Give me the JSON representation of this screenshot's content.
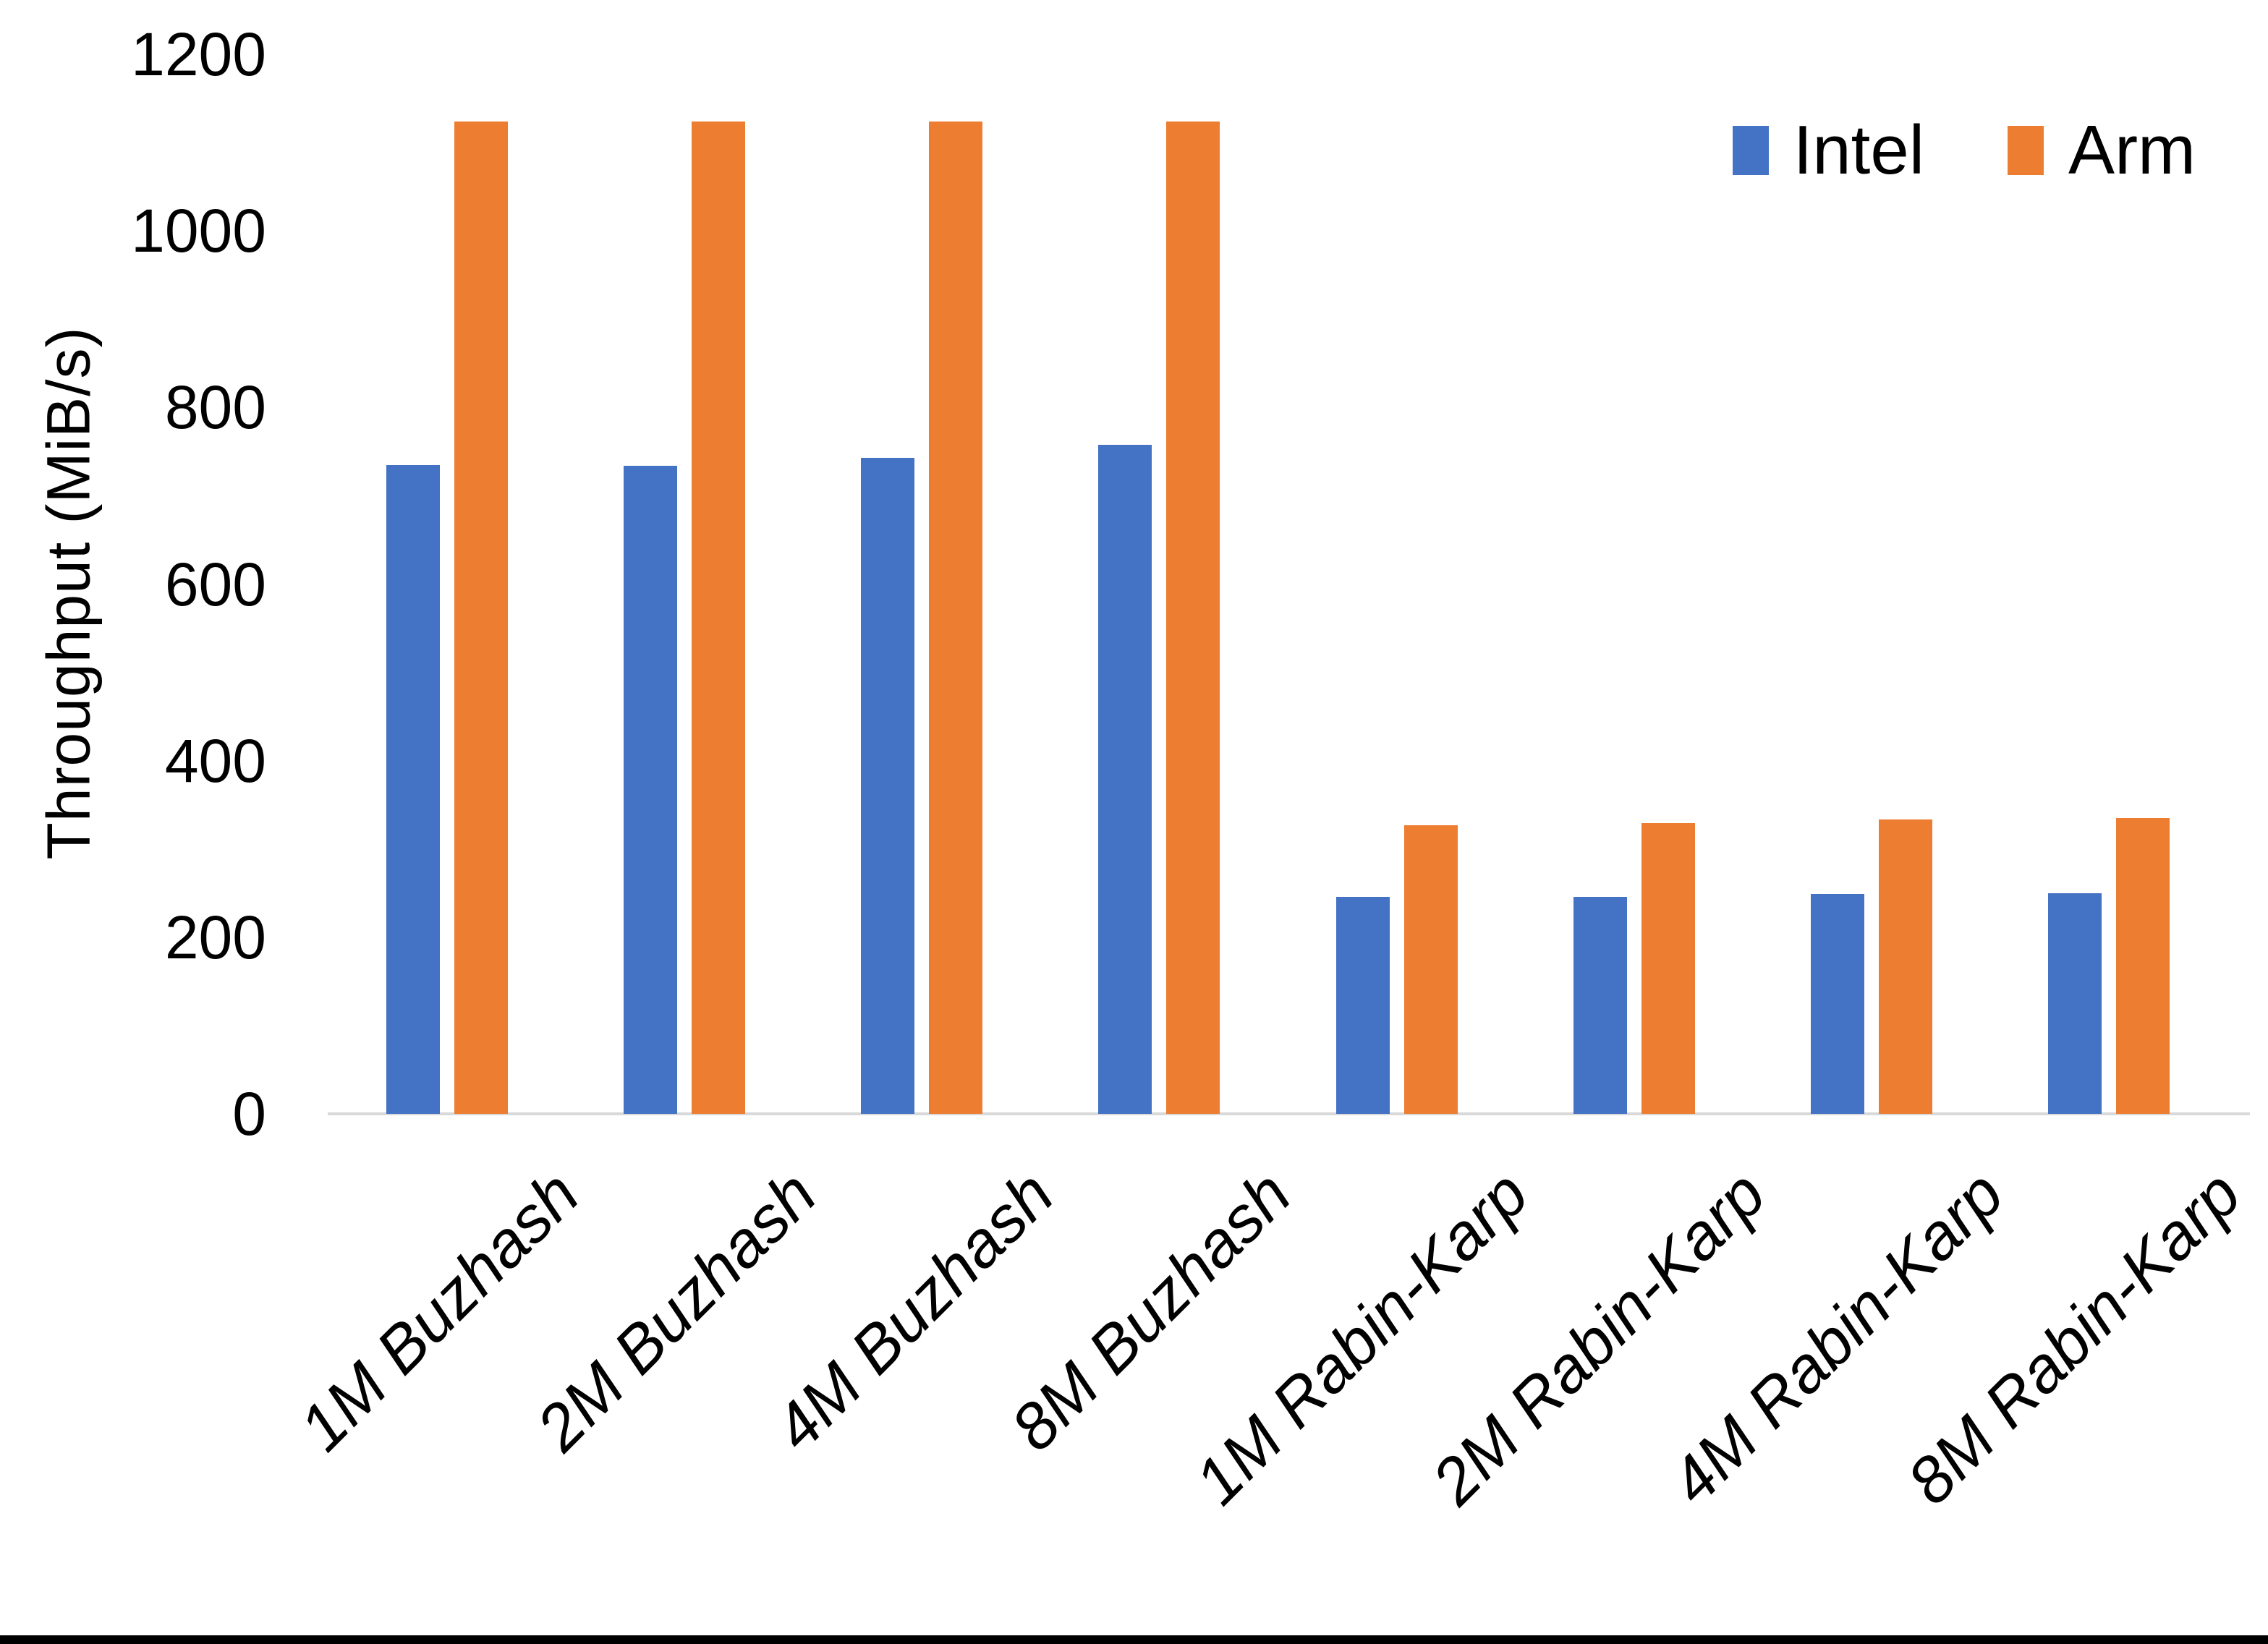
{
  "chart_data": {
    "type": "bar",
    "title": "",
    "xlabel": "",
    "ylabel": "Throughput (MiB/s)",
    "categories": [
      "1M Buzhash",
      "2M Buzhash",
      "4M Buzhash",
      "8M Buzhash",
      "1M Rabin-Karp",
      "2M Rabin-Karp",
      "4M Rabin-Karp",
      "8M Rabin-Karp"
    ],
    "series": [
      {
        "name": "Intel",
        "color": "#4472C4",
        "values": [
          735,
          734,
          743,
          758,
          246,
          246,
          249,
          250
        ]
      },
      {
        "name": "Arm",
        "color": "#ED7D31",
        "values": [
          1124,
          1124,
          1124,
          1124,
          327,
          329,
          333,
          335
        ]
      }
    ],
    "y_ticks": [
      0,
      200,
      400,
      600,
      800,
      1000,
      1200
    ],
    "ylim": [
      0,
      1200
    ],
    "grid": false,
    "legend_position": "top-right",
    "baseline_color": "#D9D9D9",
    "text_color": "#000000"
  }
}
